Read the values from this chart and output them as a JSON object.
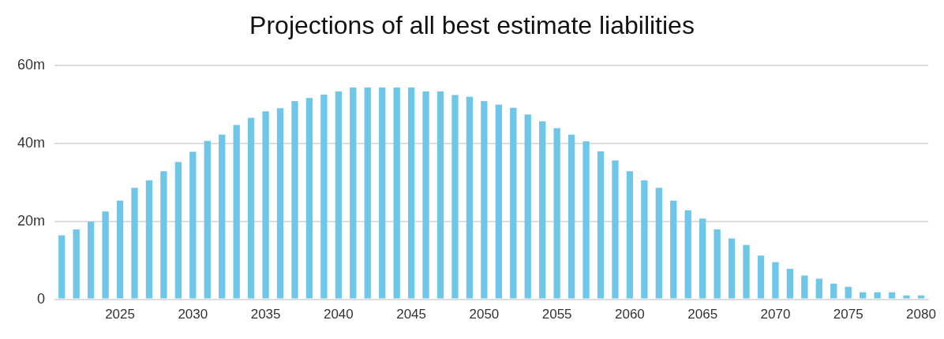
{
  "chart_data": {
    "type": "bar",
    "title": "Projections of all best estimate liabilities",
    "categories": [
      null,
      null,
      null,
      null,
      "2025",
      null,
      null,
      null,
      null,
      "2030",
      null,
      null,
      null,
      null,
      "2035",
      null,
      null,
      null,
      null,
      "2040",
      null,
      null,
      null,
      null,
      "2045",
      null,
      null,
      null,
      null,
      "2050",
      null,
      null,
      null,
      null,
      "2055",
      null,
      null,
      null,
      null,
      "2060",
      null,
      null,
      null,
      null,
      "2065",
      null,
      null,
      null,
      null,
      "2070",
      null,
      null,
      null,
      null,
      "2075",
      null,
      null,
      null,
      null,
      "2080"
    ],
    "values": [
      16.4,
      17.9,
      19.9,
      22.5,
      25.3,
      28.6,
      30.5,
      32.8,
      35.2,
      37.8,
      40.6,
      42.2,
      44.7,
      46.5,
      48.2,
      49.0,
      50.8,
      51.6,
      52.5,
      53.3,
      54.3,
      54.3,
      54.3,
      54.3,
      54.3,
      53.3,
      53.3,
      52.4,
      51.9,
      50.8,
      49.9,
      49.1,
      47.4,
      45.6,
      43.9,
      42.2,
      40.5,
      37.9,
      35.6,
      32.8,
      30.5,
      28.6,
      25.3,
      22.8,
      20.7,
      17.9,
      15.6,
      13.9,
      11.2,
      9.5,
      7.8,
      6.1,
      5.3,
      4.0,
      3.2,
      1.8,
      1.8,
      1.8,
      1.0,
      1.0
    ],
    "color": "#6ec6e8",
    "ylim": [
      0,
      60
    ],
    "yticks": [
      {
        "value": 0,
        "label": "0"
      },
      {
        "value": 20,
        "label": "20m"
      },
      {
        "value": 40,
        "label": "40m"
      },
      {
        "value": 60,
        "label": "60m"
      }
    ],
    "grid": "y"
  }
}
